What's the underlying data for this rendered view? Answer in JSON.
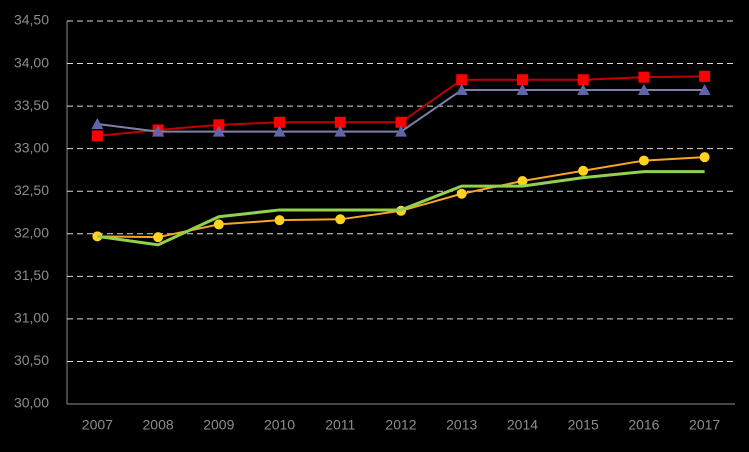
{
  "chart_data": {
    "type": "line",
    "categories": [
      "2007",
      "2008",
      "2009",
      "2010",
      "2011",
      "2012",
      "2013",
      "2014",
      "2015",
      "2016",
      "2017"
    ],
    "series": [
      {
        "color": "#c00000",
        "marker_color": "#ff0000",
        "marker": "square",
        "values": [
          33.15,
          33.22,
          33.28,
          33.31,
          33.31,
          33.31,
          33.81,
          33.81,
          33.81,
          33.84,
          33.85
        ]
      },
      {
        "color": "#7f7fa8",
        "marker_color": "#6065a8",
        "marker": "triangle",
        "values": [
          33.29,
          33.2,
          33.2,
          33.2,
          33.2,
          33.2,
          33.69,
          33.69,
          33.69,
          33.69,
          33.69
        ]
      },
      {
        "color": "#f5a623",
        "marker_color": "#ffd21f",
        "marker": "circle",
        "values": [
          31.97,
          31.96,
          32.11,
          32.16,
          32.17,
          32.27,
          32.47,
          32.62,
          32.74,
          32.86,
          32.9
        ]
      },
      {
        "color": "#92d050",
        "marker": "none",
        "values": [
          31.97,
          31.87,
          32.2,
          32.28,
          32.28,
          32.28,
          32.56,
          32.56,
          32.66,
          32.73,
          32.73
        ]
      }
    ],
    "ylim": [
      30,
      34.5
    ],
    "yticks": [
      {
        "value": 30,
        "label": "30,00"
      },
      {
        "value": 30.5,
        "label": "30,50"
      },
      {
        "value": 31,
        "label": "31,00"
      },
      {
        "value": 31.5,
        "label": "31,50"
      },
      {
        "value": 32,
        "label": "32,00"
      },
      {
        "value": 32.5,
        "label": "32,50"
      },
      {
        "value": 33,
        "label": "33,00"
      },
      {
        "value": 33.5,
        "label": "33,50"
      },
      {
        "value": 34,
        "label": "34,00"
      },
      {
        "value": 34.5,
        "label": "34,50"
      }
    ],
    "grid": true
  }
}
